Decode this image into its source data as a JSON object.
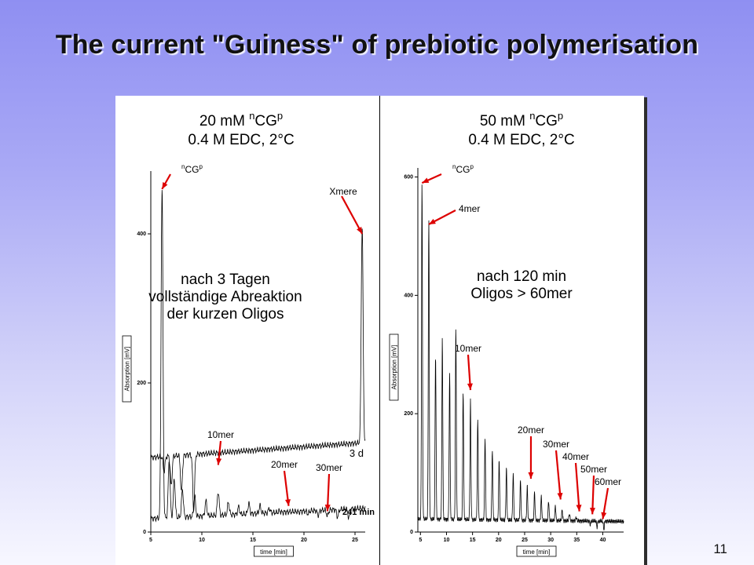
{
  "slide": {
    "title": "The current \"Guiness\" of prebiotic polymerisation",
    "page_number": "11"
  },
  "colors": {
    "arrow": "#dd0000",
    "line": "#000000",
    "background_top": "#8f8ff2",
    "background_bottom": "#f7f7ff"
  },
  "chart_data": [
    {
      "type": "line",
      "title_line1_prefix": "20 mM ",
      "title_sup_left": "n",
      "title_main": "CG",
      "title_sup_right": "p",
      "title_line2": "0.4 M EDC, 2°C",
      "xlabel": "time [min]",
      "ylabel": "Absorption [mV]",
      "xlim": [
        5,
        26
      ],
      "ylim": [
        0,
        480
      ],
      "x_ticks": [
        5,
        10,
        15,
        20,
        25
      ],
      "y_ticks": [
        0,
        200,
        400
      ],
      "annotation": [
        "nach 3 Tagen",
        "vollständige Abreaktion",
        "der kurzen Oligos"
      ],
      "series": [
        {
          "name": "241 min",
          "peaks": [
            [
              6.1,
              460
            ],
            [
              6.8,
              95
            ],
            [
              7.3,
              70
            ],
            [
              8.1,
              55
            ],
            [
              9.3,
              45
            ],
            [
              10.4,
              38
            ],
            [
              11.6,
              50
            ],
            [
              12.6,
              35
            ],
            [
              13.6,
              28
            ],
            [
              14.6,
              32
            ],
            [
              15.7,
              28
            ],
            [
              16.6,
              24
            ],
            [
              17.6,
              20
            ],
            [
              18.5,
              18
            ],
            [
              19.5,
              17
            ],
            [
              20.4,
              14
            ],
            [
              21.4,
              12
            ],
            [
              22.3,
              10
            ],
            [
              23.3,
              8
            ],
            [
              24.4,
              6
            ]
          ],
          "baseline_start": 18,
          "baseline_end": 32
        },
        {
          "name": "3 d",
          "peaks": [
            [
              6.3,
              80
            ],
            [
              7.0,
              60
            ],
            [
              8.0,
              50
            ],
            [
              9.2,
              25
            ],
            [
              25.7,
              390
            ]
          ],
          "baseline_start": 100,
          "baseline_end": 120
        }
      ],
      "arrow_labels": [
        {
          "text": "nCGp",
          "x": 6.1,
          "y": 460
        },
        {
          "text": "Xmere",
          "x": 25.7,
          "y": 400
        },
        {
          "text": "10mer",
          "x": 11.6,
          "y": 90
        },
        {
          "text": "20mer",
          "x": 18.5,
          "y": 35
        },
        {
          "text": "30mer",
          "x": 22.3,
          "y": 28
        }
      ]
    },
    {
      "type": "line",
      "title_line1_prefix": "50 mM ",
      "title_sup_left": "n",
      "title_main": "CG",
      "title_sup_right": "p",
      "title_line2": "0.4 M EDC, 2°C",
      "xlabel": "time [min]",
      "ylabel": "Absorption [mV]",
      "xlim": [
        4.5,
        44
      ],
      "ylim": [
        0,
        610
      ],
      "x_ticks": [
        5,
        10,
        15,
        20,
        25,
        30,
        35,
        40
      ],
      "y_ticks": [
        0,
        200,
        400,
        600
      ],
      "annotation": [
        "nach 120 min",
        "Oligos > 60mer"
      ],
      "series": [
        {
          "name": "120 min",
          "peaks": [
            [
              5.3,
              590
            ],
            [
              6.6,
              530
            ],
            [
              7.9,
              300
            ],
            [
              9.2,
              330
            ],
            [
              10.6,
              270
            ],
            [
              11.8,
              345
            ],
            [
              13.2,
              240
            ],
            [
              14.6,
              225
            ],
            [
              16.0,
              190
            ],
            [
              17.4,
              160
            ],
            [
              18.8,
              140
            ],
            [
              20.1,
              125
            ],
            [
              21.5,
              110
            ],
            [
              22.8,
              100
            ],
            [
              24.2,
              88
            ],
            [
              25.5,
              80
            ],
            [
              26.9,
              70
            ],
            [
              28.2,
              62
            ],
            [
              29.6,
              55
            ],
            [
              30.9,
              48
            ],
            [
              32.2,
              40
            ],
            [
              33.6,
              34
            ],
            [
              34.9,
              28
            ],
            [
              36.2,
              22
            ],
            [
              37.6,
              16
            ],
            [
              38.9,
              12
            ],
            [
              40.2,
              8
            ]
          ],
          "baseline_start": 22,
          "baseline_end": 18
        }
      ],
      "arrow_labels": [
        {
          "text": "nCGp",
          "x": 5.3,
          "y": 590
        },
        {
          "text": "4mer",
          "x": 6.6,
          "y": 520
        },
        {
          "text": "10mer",
          "x": 14.6,
          "y": 240
        },
        {
          "text": "20mer",
          "x": 26.2,
          "y": 90
        },
        {
          "text": "30mer",
          "x": 31.9,
          "y": 55
        },
        {
          "text": "40mer",
          "x": 35.5,
          "y": 35
        },
        {
          "text": "50mer",
          "x": 38.0,
          "y": 30
        },
        {
          "text": "60mer",
          "x": 40.0,
          "y": 22
        }
      ]
    }
  ]
}
